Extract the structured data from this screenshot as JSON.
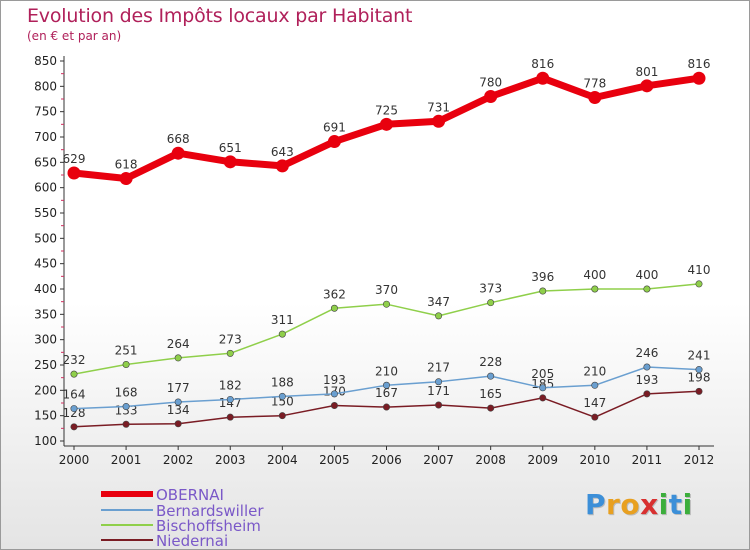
{
  "header": {
    "title": "Evolution des Impôts locaux par Habitant",
    "subtitle": "(en € et par an)"
  },
  "colors": {
    "title": "#b0205a",
    "OBERNAI": "#e8000e",
    "Bernardswiller": "#6a9fd0",
    "Bischoffsheim": "#8fcf4a",
    "Niedernai": "#7a1c24"
  },
  "chart_data": {
    "type": "line",
    "title": "Evolution des Impôts locaux par Habitant",
    "subtitle": "(en € et par an)",
    "x": [
      2000,
      2001,
      2002,
      2003,
      2004,
      2005,
      2006,
      2007,
      2008,
      2009,
      2010,
      2011,
      2012
    ],
    "ylim": [
      100,
      850
    ],
    "yticks": [
      100,
      150,
      200,
      250,
      300,
      350,
      400,
      450,
      500,
      550,
      600,
      650,
      700,
      750,
      800,
      850
    ],
    "grid": false,
    "legend_position": "bottom-left",
    "series": [
      {
        "name": "OBERNAI",
        "values": [
          629,
          618,
          668,
          651,
          643,
          691,
          725,
          731,
          780,
          816,
          778,
          801,
          816
        ]
      },
      {
        "name": "Bernardswiller",
        "values": [
          164,
          168,
          177,
          182,
          188,
          193,
          210,
          217,
          228,
          205,
          210,
          246,
          241
        ]
      },
      {
        "name": "Bischoffsheim",
        "values": [
          232,
          251,
          264,
          273,
          311,
          362,
          370,
          347,
          373,
          396,
          400,
          400,
          410
        ]
      },
      {
        "name": "Niedernai",
        "values": [
          128,
          133,
          134,
          147,
          150,
          170,
          167,
          171,
          165,
          185,
          147,
          193,
          198
        ]
      }
    ]
  },
  "legend": {
    "items": [
      "OBERNAI",
      "Bernardswiller",
      "Bischoffsheim",
      "Niedernai"
    ]
  },
  "logo": {
    "letters": [
      "P",
      "r",
      "o",
      "x",
      "i",
      "t",
      "i"
    ],
    "colors": [
      "#3c8fd8",
      "#e8a020",
      "#e8a020",
      "#d83030",
      "#3cae3c",
      "#3c8fd8",
      "#3cae3c"
    ]
  }
}
